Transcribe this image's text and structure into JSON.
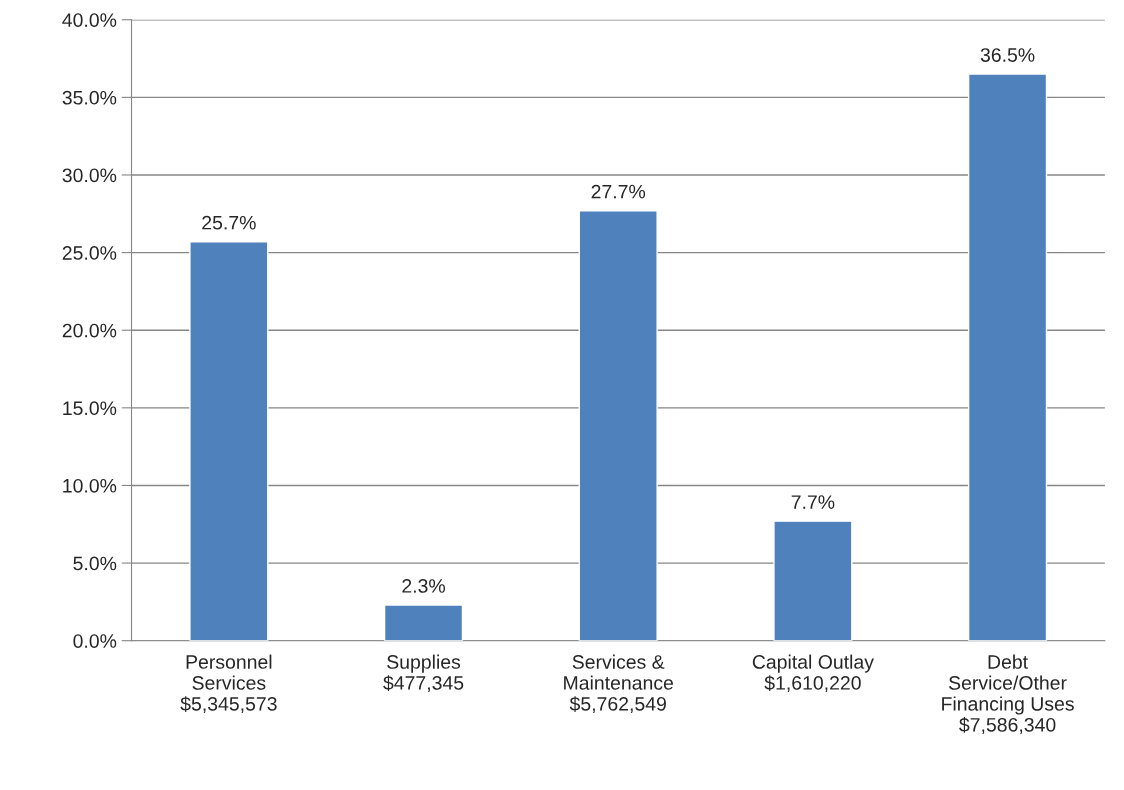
{
  "chart_data": {
    "type": "bar",
    "categories": [
      "Personnel\nServices\n$5,345,573",
      "Supplies\n$477,345",
      "Services &\nMaintenance\n$5,762,549",
      "Capital Outlay\n$1,610,220",
      "Debt\nService/Other\nFinancing Uses\n$7,586,340"
    ],
    "values": [
      25.7,
      2.3,
      27.7,
      7.7,
      36.5
    ],
    "value_labels": [
      "25.7%",
      "2.3%",
      "27.7%",
      "7.7%",
      "36.5%"
    ],
    "color": "#4f81bd",
    "ylim": [
      0,
      40
    ],
    "yticks": [
      {
        "value": 0,
        "label": "0.0%"
      },
      {
        "value": 5,
        "label": "5.0%"
      },
      {
        "value": 10,
        "label": "10.0%"
      },
      {
        "value": 15,
        "label": "15.0%"
      },
      {
        "value": 20,
        "label": "20.0%"
      },
      {
        "value": 25,
        "label": "25.0%"
      },
      {
        "value": 30,
        "label": "30.0%"
      },
      {
        "value": 35,
        "label": "35.0%"
      },
      {
        "value": 40,
        "label": "40.0%"
      }
    ],
    "grid": "y",
    "legend": false
  }
}
